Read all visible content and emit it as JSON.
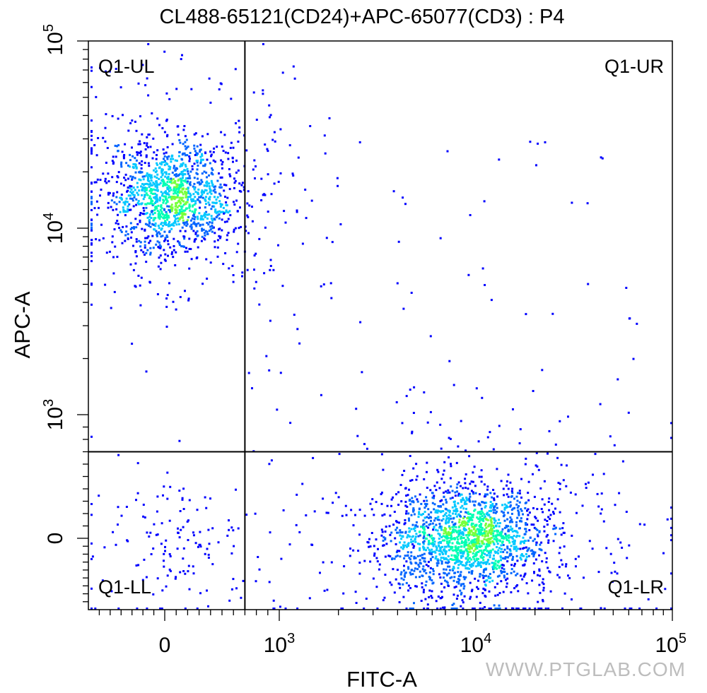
{
  "chart_data": {
    "type": "scatter",
    "title": "CL488-65121(CD24)+APC-65077(CD3) : P4",
    "xlabel": "FITC-A",
    "ylabel": "APC-A",
    "x_scale": "biexponential",
    "y_scale": "biexponential",
    "x_ticks": [
      {
        "value": 0,
        "base": "0",
        "exp": ""
      },
      {
        "value": 1000,
        "base": "10",
        "exp": "3"
      },
      {
        "value": 10000,
        "base": "10",
        "exp": "4"
      },
      {
        "value": 100000,
        "base": "10",
        "exp": "5"
      }
    ],
    "y_ticks": [
      {
        "value": 0,
        "base": "0",
        "exp": ""
      },
      {
        "value": 1000,
        "base": "10",
        "exp": "3"
      },
      {
        "value": 10000,
        "base": "10",
        "exp": "4"
      },
      {
        "value": 100000,
        "base": "10",
        "exp": "5"
      }
    ],
    "gates": {
      "x": 700,
      "y": 700
    },
    "quadrants": [
      {
        "name": "Q1-UL"
      },
      {
        "name": "Q1-UR"
      },
      {
        "name": "Q1-LL"
      },
      {
        "name": "Q1-LR"
      }
    ],
    "populations": [
      {
        "quadrant": "UL",
        "x_center": 60,
        "y_center": 15000,
        "approx_events": 1500
      },
      {
        "quadrant": "LR",
        "x_center": 9000,
        "y_center": 0,
        "approx_events": 2000
      },
      {
        "quadrant": "LL",
        "x_center": 100,
        "y_center": 0,
        "approx_events": 150
      }
    ],
    "density_colors": [
      "#0000ff",
      "#0064ff",
      "#00c8ff",
      "#00ffb4",
      "#78ff3c",
      "#f0ff00"
    ],
    "grid": false,
    "legend": "none"
  },
  "watermark": "WWW.PTGLAB.COM"
}
